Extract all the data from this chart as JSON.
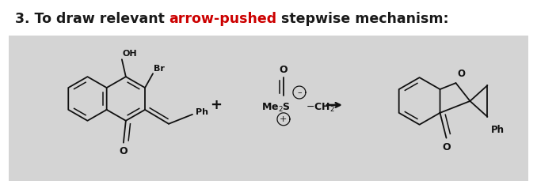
{
  "title_parts": [
    {
      "text": "3. To draw relevant ",
      "color": "#1a1a1a",
      "bold": true
    },
    {
      "text": "arrow-pushed",
      "color": "#cc0000",
      "bold": true
    },
    {
      "text": " stepwise mechanism:",
      "color": "#1a1a1a",
      "bold": true
    }
  ],
  "background_color": "#ffffff",
  "box_background": "#d4d4d4",
  "figsize": [
    6.78,
    2.38
  ],
  "dpi": 100,
  "lw": 1.3,
  "lc": "#111111"
}
